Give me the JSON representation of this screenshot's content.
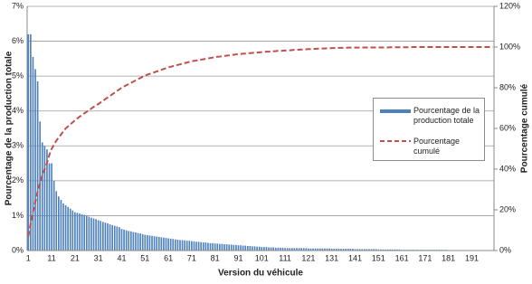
{
  "chart_data": {
    "type": "bar",
    "x_label": "Version du véhicule",
    "y_label": "Pourcentage de la production totale",
    "y2_label": "Pourcentage cumulé",
    "categories": [
      "1",
      null,
      null,
      null,
      null,
      null,
      null,
      null,
      null,
      null,
      "11",
      null,
      null,
      null,
      null,
      null,
      null,
      null,
      null,
      null,
      "21",
      null,
      null,
      null,
      null,
      null,
      null,
      null,
      null,
      null,
      "31",
      null,
      null,
      null,
      null,
      null,
      null,
      null,
      null,
      null,
      "41",
      null,
      null,
      null,
      null,
      null,
      null,
      null,
      null,
      null,
      "51",
      null,
      null,
      null,
      null,
      null,
      null,
      null,
      null,
      null,
      "61",
      null,
      null,
      null,
      null,
      null,
      null,
      null,
      null,
      null,
      "71",
      null,
      null,
      null,
      null,
      null,
      null,
      null,
      null,
      null,
      "81",
      null,
      null,
      null,
      null,
      null,
      null,
      null,
      null,
      null,
      "91",
      null,
      null,
      null,
      null,
      null,
      null,
      null,
      null,
      null,
      "101",
      null,
      null,
      null,
      null,
      null,
      null,
      null,
      null,
      null,
      "111",
      null,
      null,
      null,
      null,
      null,
      null,
      null,
      null,
      null,
      "121",
      null,
      null,
      null,
      null,
      null,
      null,
      null,
      null,
      null,
      "131",
      null,
      null,
      null,
      null,
      null,
      null,
      null,
      null,
      null,
      "141",
      null,
      null,
      null,
      null,
      null,
      null,
      null,
      null,
      null,
      "151",
      null,
      null,
      null,
      null,
      null,
      null,
      null,
      null,
      null,
      "161",
      null,
      null,
      null,
      null,
      null,
      null,
      null,
      null,
      null,
      "171",
      null,
      null,
      null,
      null,
      null,
      null,
      null,
      null,
      null,
      "181",
      null,
      null,
      null,
      null,
      null,
      null,
      null,
      null,
      null,
      "191",
      null,
      null,
      null,
      null,
      null,
      null,
      null,
      null,
      null
    ],
    "series": [
      {
        "name": "Pourcentage de la production totale",
        "type": "bar",
        "color": "#4f81bd",
        "values": [
          6.2,
          6.2,
          5.55,
          5.2,
          4.85,
          3.7,
          3.1,
          3.0,
          2.9,
          2.5,
          2.5,
          2.0,
          1.7,
          1.55,
          1.45,
          1.35,
          1.3,
          1.25,
          1.2,
          1.15,
          1.1,
          1.08,
          1.06,
          1.04,
          1.02,
          1.0,
          0.97,
          0.94,
          0.92,
          0.9,
          0.87,
          0.85,
          0.82,
          0.8,
          0.78,
          0.75,
          0.73,
          0.71,
          0.69,
          0.67,
          0.62,
          0.6,
          0.58,
          0.56,
          0.55,
          0.53,
          0.52,
          0.5,
          0.49,
          0.47,
          0.45,
          0.44,
          0.43,
          0.42,
          0.41,
          0.4,
          0.39,
          0.38,
          0.37,
          0.36,
          0.35,
          0.34,
          0.33,
          0.32,
          0.31,
          0.3,
          0.3,
          0.29,
          0.28,
          0.28,
          0.27,
          0.26,
          0.25,
          0.25,
          0.24,
          0.23,
          0.23,
          0.22,
          0.21,
          0.21,
          0.2,
          0.2,
          0.19,
          0.19,
          0.18,
          0.18,
          0.17,
          0.17,
          0.16,
          0.16,
          0.15,
          0.15,
          0.14,
          0.14,
          0.13,
          0.13,
          0.12,
          0.12,
          0.11,
          0.11,
          0.1,
          0.1,
          0.1,
          0.09,
          0.09,
          0.09,
          0.08,
          0.08,
          0.08,
          0.08,
          0.07,
          0.07,
          0.07,
          0.07,
          0.07,
          0.07,
          0.07,
          0.07,
          0.07,
          0.07,
          0.06,
          0.06,
          0.06,
          0.06,
          0.06,
          0.06,
          0.06,
          0.06,
          0.06,
          0.06,
          0.05,
          0.05,
          0.05,
          0.05,
          0.05,
          0.05,
          0.05,
          0.05,
          0.05,
          0.05,
          0.04,
          0.04,
          0.04,
          0.04,
          0.04,
          0.04,
          0.04,
          0.04,
          0.04,
          0.04,
          0.03,
          0.03,
          0.03,
          0.03,
          0.03,
          0.03,
          0.03,
          0.03,
          0.03,
          0.03,
          0.02,
          0.02,
          0.02,
          0.02,
          0.02,
          0.02,
          0.02,
          0.02,
          0.02,
          0.02,
          0.02,
          0.02,
          0.02,
          0.02,
          0.02,
          0.02,
          0.02,
          0.02,
          0.02,
          0.02,
          0.01,
          0.01,
          0.01,
          0.01,
          0.01,
          0.01,
          0.01,
          0.01,
          0.01,
          0.01,
          0.01,
          0.01,
          0.01,
          0.01,
          0.01,
          0.01,
          0.01,
          0.01,
          0.01,
          0.01
        ]
      },
      {
        "name": "Pourcentage cumulé",
        "type": "line",
        "color": "#c0504d",
        "axis": "y2",
        "dashed": true,
        "values": [
          7,
          13,
          19,
          24,
          29,
          33,
          37,
          40,
          43,
          47,
          50,
          52,
          54,
          55.5,
          57,
          58.5,
          60,
          61,
          62,
          63,
          64,
          64.9,
          65.8,
          66.6,
          67.4,
          68.2,
          69,
          69.8,
          70.6,
          71.3,
          72,
          72.8,
          73.6,
          74.4,
          75.2,
          76,
          76.8,
          77.6,
          78.4,
          79.2,
          80,
          80.6,
          81.2,
          81.8,
          82.4,
          83,
          83.6,
          84.2,
          84.8,
          85.4,
          86,
          86.4,
          86.8,
          87.2,
          87.6,
          88,
          88.4,
          88.8,
          89.2,
          89.6,
          90,
          90.3,
          90.6,
          90.9,
          91.2,
          91.5,
          91.8,
          92.1,
          92.4,
          92.7,
          93,
          93.2,
          93.4,
          93.6,
          93.8,
          94,
          94.2,
          94.4,
          94.6,
          94.8,
          95,
          95.2,
          95.3,
          95.5,
          95.6,
          95.8,
          95.9,
          96.1,
          96.2,
          96.4,
          96.5,
          96.6,
          96.7,
          96.8,
          96.9,
          97,
          97.1,
          97.2,
          97.3,
          97.4,
          97.5,
          97.6,
          97.7,
          97.7,
          97.8,
          97.9,
          98,
          98.1,
          98.1,
          98.2,
          98.3,
          98.4,
          98.4,
          98.5,
          98.6,
          98.6,
          98.7,
          98.8,
          98.8,
          98.9,
          99,
          99,
          99.1,
          99.1,
          99.2,
          99.2,
          99.3,
          99.3,
          99.4,
          99.4,
          99.5,
          99.5,
          99.5,
          99.6,
          99.6,
          99.6,
          99.6,
          99.7,
          99.7,
          99.7,
          99.7,
          99.7,
          99.7,
          99.7,
          99.8,
          99.8,
          99.8,
          99.8,
          99.8,
          99.8,
          99.8,
          99.8,
          99.8,
          99.8,
          99.8,
          99.9,
          99.9,
          99.9,
          99.9,
          99.9,
          99.9,
          99.9,
          99.9,
          99.9,
          99.9,
          100,
          100,
          100,
          100,
          100,
          100,
          100,
          100,
          100,
          100,
          100,
          100,
          100,
          100,
          100,
          100,
          100,
          100,
          100,
          100,
          100,
          100,
          100,
          100,
          100,
          100,
          100,
          100,
          100,
          100,
          100,
          100,
          100,
          100,
          100
        ]
      }
    ],
    "ylim": [
      0,
      7
    ],
    "yticks": [
      {
        "value": 0,
        "label": "0%"
      },
      {
        "value": 1,
        "label": "1%"
      },
      {
        "value": 2,
        "label": "2%"
      },
      {
        "value": 3,
        "label": "3%"
      },
      {
        "value": 4,
        "label": "4%"
      },
      {
        "value": 5,
        "label": "5%"
      },
      {
        "value": 6,
        "label": "6%"
      },
      {
        "value": 7,
        "label": "7%"
      }
    ],
    "y2lim": [
      0,
      120
    ],
    "y2ticks": [
      {
        "value": 0,
        "label": "0%"
      },
      {
        "value": 20,
        "label": "20%"
      },
      {
        "value": 40,
        "label": "40%"
      },
      {
        "value": 60,
        "label": "60%"
      },
      {
        "value": 80,
        "label": "80%"
      },
      {
        "value": 100,
        "label": "100%"
      },
      {
        "value": 120,
        "label": "120%"
      }
    ],
    "grid": true,
    "legend": "right"
  }
}
